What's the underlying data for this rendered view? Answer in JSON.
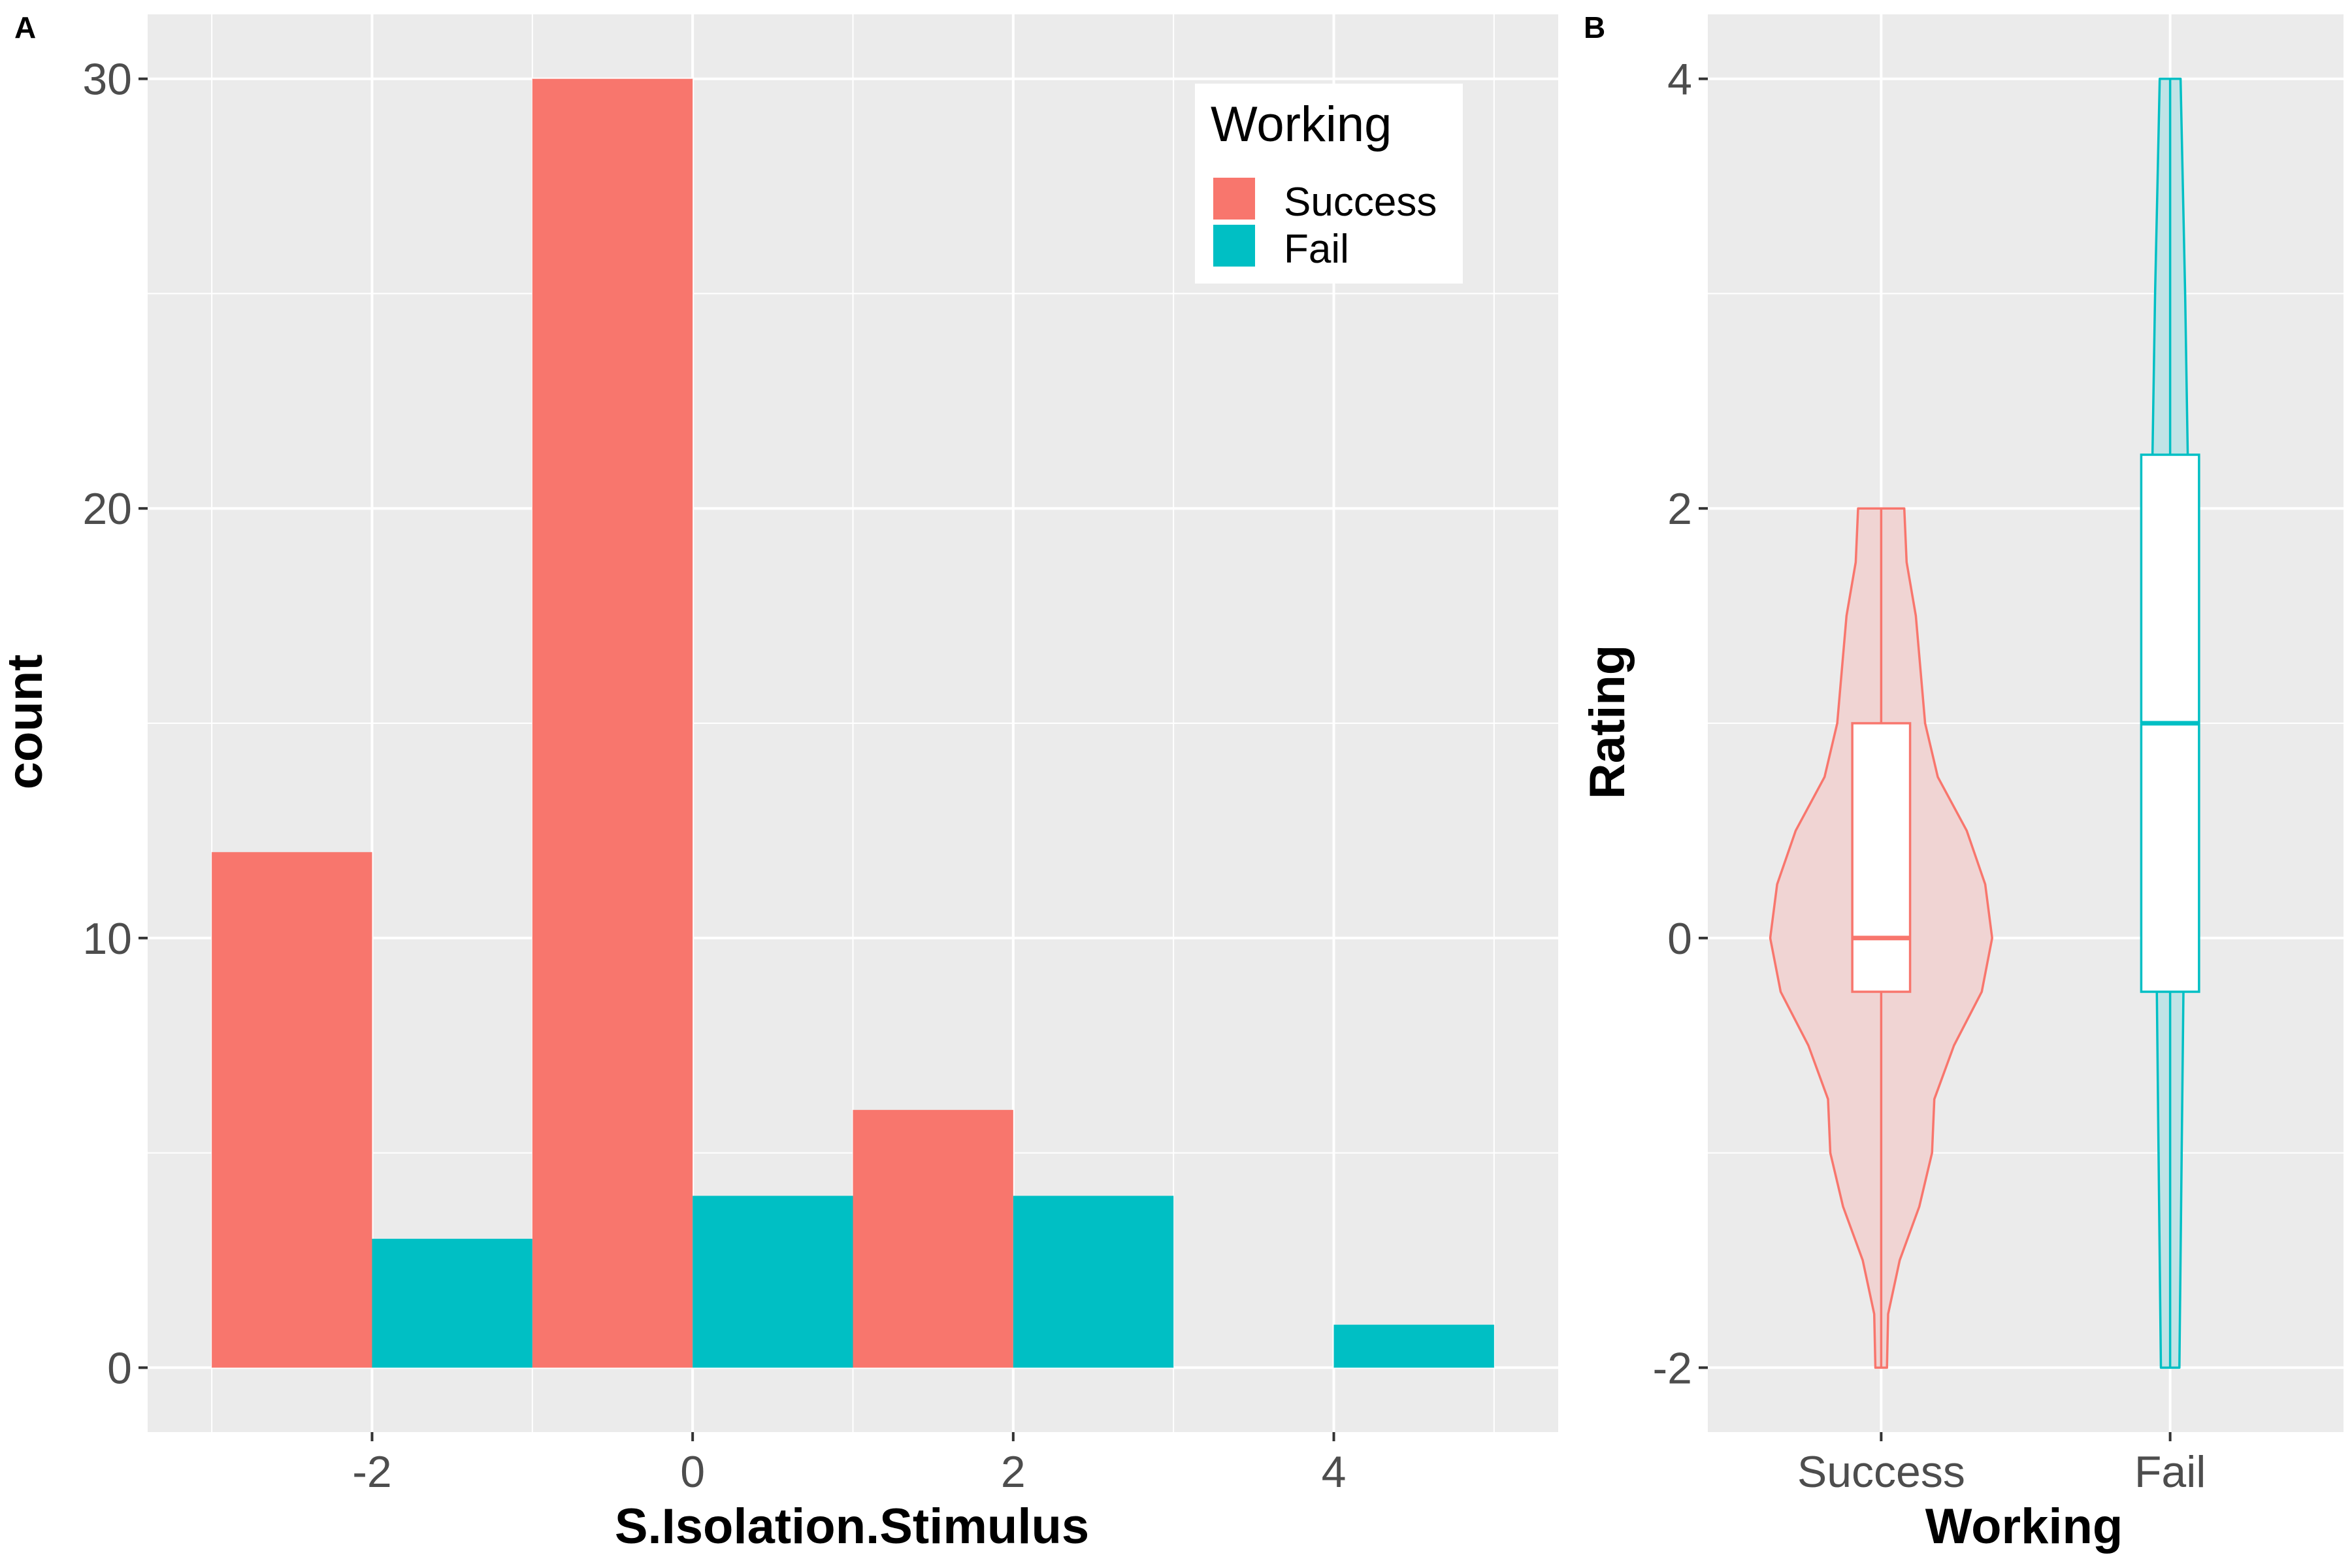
{
  "panels": {
    "a_label": "A",
    "b_label": "B"
  },
  "colors": {
    "panel_bg": "#ebebeb",
    "grid": "#ffffff",
    "success": "#f8766d",
    "fail": "#00bfc4",
    "success_fill": "#f0d4d3",
    "fail_fill": "#c0e3e6"
  },
  "chart_data": [
    {
      "type": "bar",
      "subtype": "histogram",
      "panel": "A",
      "xlabel": "S.Isolation.Stimulus",
      "ylabel": "count",
      "xlim": [
        -3.4,
        5.4
      ],
      "ylim": [
        -1.5,
        31.5
      ],
      "x_ticks": [
        -2,
        0,
        2,
        4
      ],
      "x_tick_labels": [
        "-2",
        "0",
        "2",
        "4"
      ],
      "y_ticks": [
        0,
        10,
        20,
        30
      ],
      "y_tick_labels": [
        "0",
        "10",
        "20",
        "30"
      ],
      "grid": true,
      "legend": {
        "title": "Working",
        "position": "top-right",
        "entries": [
          "Success",
          "Fail"
        ]
      },
      "bin_width": 2,
      "series": [
        {
          "name": "Success",
          "color": "#f8766d",
          "bins": [
            {
              "x_start": -3,
              "x_end": -2,
              "value": 12
            },
            {
              "x_start": -1,
              "x_end": 0,
              "value": 30
            },
            {
              "x_start": 1,
              "x_end": 2,
              "value": 6
            }
          ]
        },
        {
          "name": "Fail",
          "color": "#00bfc4",
          "bins": [
            {
              "x_start": -2,
              "x_end": -1,
              "value": 3
            },
            {
              "x_start": 0,
              "x_end": 1,
              "value": 4
            },
            {
              "x_start": 2,
              "x_end": 3,
              "value": 4
            },
            {
              "x_start": 4,
              "x_end": 5,
              "value": 1
            }
          ]
        }
      ]
    },
    {
      "type": "violin",
      "panel": "B",
      "xlabel": "Working",
      "ylabel": "Rating",
      "categories": [
        "Success",
        "Fail"
      ],
      "ylim": [
        -2.3,
        4.3
      ],
      "y_ticks": [
        -2,
        0,
        2,
        4
      ],
      "y_tick_labels": [
        "-2",
        "0",
        "2",
        "4"
      ],
      "grid": true,
      "series": [
        {
          "name": "Success",
          "color": "#f8766d",
          "min": -2,
          "q1": -0.25,
          "median": 0,
          "q3": 1,
          "max": 2,
          "density": [
            [
              -2,
              0.05
            ],
            [
              -1.75,
              0.06
            ],
            [
              -1.5,
              0.16
            ],
            [
              -1.25,
              0.33
            ],
            [
              -1,
              0.44
            ],
            [
              -0.75,
              0.46
            ],
            [
              -0.5,
              0.63
            ],
            [
              -0.25,
              0.87
            ],
            [
              0,
              0.96
            ],
            [
              0.25,
              0.9
            ],
            [
              0.5,
              0.74
            ],
            [
              0.75,
              0.49
            ],
            [
              1,
              0.38
            ],
            [
              1.25,
              0.34
            ],
            [
              1.5,
              0.3
            ],
            [
              1.75,
              0.22
            ],
            [
              2,
              0.2
            ]
          ]
        },
        {
          "name": "Fail",
          "color": "#00bfc4",
          "min": -2,
          "q1": -0.25,
          "median": 1,
          "q3": 2.25,
          "max": 4,
          "density": [
            [
              -2,
              0.08
            ],
            [
              -1,
              0.1
            ],
            [
              0,
              0.12
            ],
            [
              1,
              0.14
            ],
            [
              2,
              0.16
            ],
            [
              3,
              0.13
            ],
            [
              3.5,
              0.11
            ],
            [
              4,
              0.09
            ]
          ]
        }
      ]
    }
  ]
}
